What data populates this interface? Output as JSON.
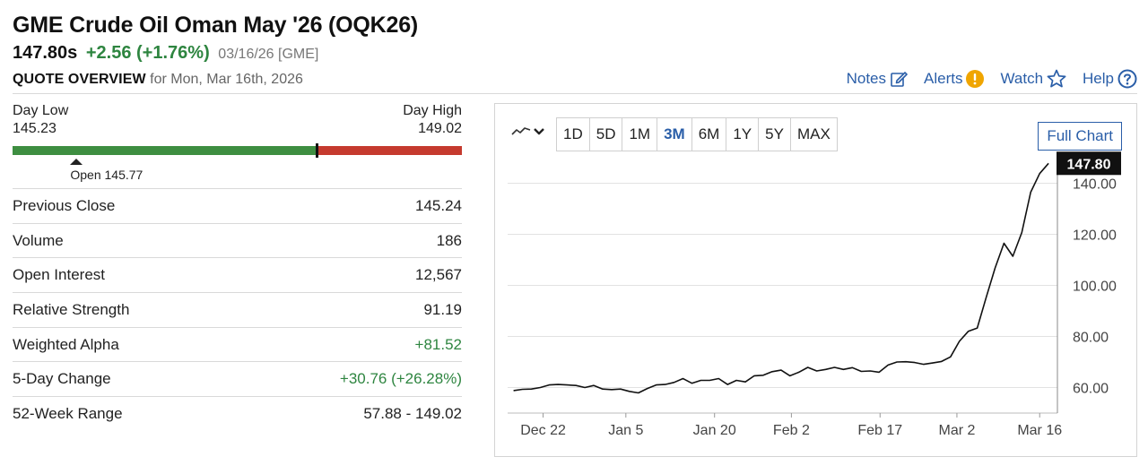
{
  "header": {
    "title": "GME Crude Oil Oman May '26 (OQK26)",
    "last": "147.80s",
    "change": "+2.56 (+1.76%)",
    "meta": "03/16/26 [GME]",
    "overview_title": "QUOTE OVERVIEW",
    "overview_for": "for Mon, Mar 16th, 2026"
  },
  "toolbar": {
    "notes": "Notes",
    "alerts": "Alerts",
    "watch": "Watch",
    "help": "Help",
    "icons": [
      "edit-icon",
      "alert-icon",
      "star-icon",
      "help-icon"
    ],
    "alert_color": "#f0a500",
    "link_color": "#2a5ea8"
  },
  "day_range": {
    "low_label": "Day Low",
    "high_label": "Day High",
    "low": "145.23",
    "high": "149.02",
    "open_label": "Open 145.77",
    "low_value": 145.23,
    "high_value": 149.02,
    "last_value": 147.8,
    "open_value": 145.77,
    "up_color": "#3e8e41",
    "down_color": "#c53a2e"
  },
  "stats": [
    {
      "label": "Previous Close",
      "value": "145.24",
      "positive": false
    },
    {
      "label": "Volume",
      "value": "186",
      "positive": false
    },
    {
      "label": "Open Interest",
      "value": "12,567",
      "positive": false
    },
    {
      "label": "Relative Strength",
      "value": "91.19",
      "positive": false
    },
    {
      "label": "Weighted Alpha",
      "value": "+81.52",
      "positive": true
    },
    {
      "label": "5-Day Change",
      "value": "+30.76 (+26.28%)",
      "positive": true
    },
    {
      "label": "52-Week Range",
      "value": "57.88 - 149.02",
      "positive": false
    }
  ],
  "chart_controls": {
    "chart_type_icon": "line-chart-icon",
    "tabs": [
      "1D",
      "5D",
      "1M",
      "3M",
      "6M",
      "1Y",
      "5Y",
      "MAX"
    ],
    "active_tab": "3M",
    "full_chart": "Full Chart"
  },
  "chart_data": {
    "type": "line",
    "last_label": "147.80",
    "y_ticks": [
      60,
      80,
      100,
      120,
      140
    ],
    "y_tick_labels": [
      "60.00",
      "80.00",
      "100.00",
      "120.00",
      "140.00"
    ],
    "ylim": [
      50,
      150
    ],
    "x_tick_labels": [
      "Dec 22",
      "Jan 5",
      "Jan 20",
      "Feb 2",
      "Feb 17",
      "Mar 2",
      "Mar 16"
    ],
    "x_tick_days": [
      6,
      20,
      35,
      48,
      63,
      76,
      90
    ],
    "x_range_days": [
      0,
      93
    ],
    "values": [
      58.8,
      59.3,
      59.4,
      60.0,
      61.0,
      61.2,
      61.0,
      60.8,
      60.0,
      60.8,
      59.4,
      59.2,
      59.4,
      58.5,
      57.9,
      59.6,
      61.0,
      61.2,
      62.0,
      63.5,
      61.7,
      62.8,
      62.8,
      63.5,
      61.2,
      62.8,
      62.2,
      64.6,
      64.8,
      66.2,
      66.8,
      64.6,
      66.0,
      67.9,
      66.5,
      67.1,
      67.9,
      67.1,
      67.8,
      66.3,
      66.5,
      66.0,
      68.8,
      70.0,
      70.1,
      69.8,
      69.1,
      69.6,
      70.2,
      72.0,
      78.1,
      82.0,
      83.3,
      95.2,
      106.8,
      116.5,
      111.4,
      120.7,
      136.5,
      143.8,
      147.8
    ],
    "line_color": "#111111",
    "last_badge_color": "#111111"
  }
}
